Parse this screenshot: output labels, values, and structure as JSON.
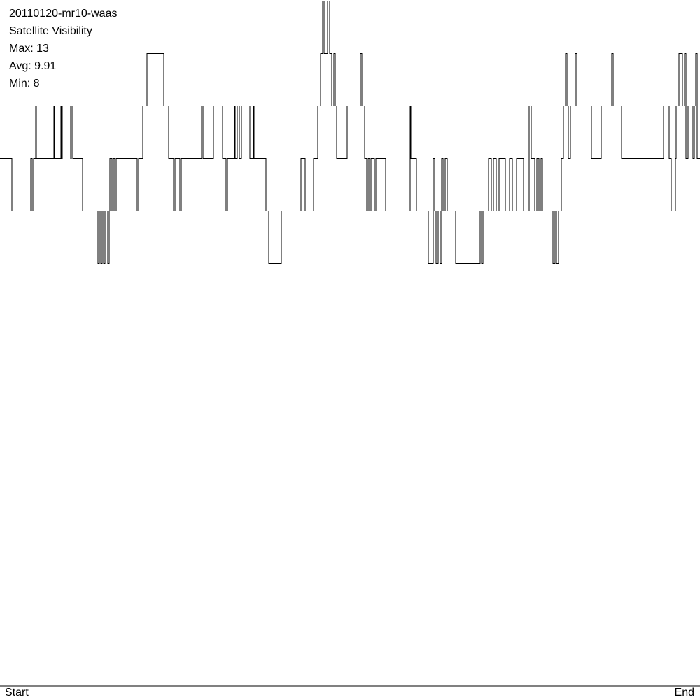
{
  "chart_data": {
    "type": "line",
    "title": "20110120-mr10-waas",
    "subtitle": "Satellite Visibility",
    "stats": [
      {
        "label": "Max",
        "value": 13
      },
      {
        "label": "Avg",
        "value": 9.91
      },
      {
        "label": "Min",
        "value": 8
      }
    ],
    "x_tick_labels": [
      "Start",
      "End"
    ],
    "x_range": [
      0,
      1000
    ],
    "ylim": [
      0,
      13
    ],
    "line_color": "#000000",
    "series": [
      {
        "values": [
          [
            0,
            10
          ],
          [
            17,
            10
          ],
          [
            17,
            9
          ],
          [
            44,
            9
          ],
          [
            44,
            10
          ],
          [
            46,
            10
          ],
          [
            46,
            9
          ],
          [
            48,
            9
          ],
          [
            48,
            10
          ],
          [
            51,
            10
          ],
          [
            51,
            11
          ],
          [
            52,
            11
          ],
          [
            52,
            10
          ],
          [
            77,
            10
          ],
          [
            77,
            11
          ],
          [
            78,
            11
          ],
          [
            78,
            10
          ],
          [
            87,
            10
          ],
          [
            87,
            11
          ],
          [
            88,
            11
          ],
          [
            88,
            10
          ],
          [
            89,
            10
          ],
          [
            89,
            11
          ],
          [
            101,
            11
          ],
          [
            101,
            10
          ],
          [
            102,
            10
          ],
          [
            102,
            11
          ],
          [
            104,
            11
          ],
          [
            104,
            10
          ],
          [
            118,
            10
          ],
          [
            118,
            9
          ],
          [
            140,
            9
          ],
          [
            140,
            8
          ],
          [
            142,
            8
          ],
          [
            142,
            9
          ],
          [
            144,
            9
          ],
          [
            144,
            8
          ],
          [
            146,
            8
          ],
          [
            146,
            9
          ],
          [
            148,
            9
          ],
          [
            148,
            8
          ],
          [
            150,
            8
          ],
          [
            150,
            9
          ],
          [
            154,
            9
          ],
          [
            154,
            8
          ],
          [
            156,
            8
          ],
          [
            156,
            9
          ],
          [
            157,
            9
          ],
          [
            157,
            10
          ],
          [
            160,
            10
          ],
          [
            160,
            9
          ],
          [
            162,
            9
          ],
          [
            162,
            10
          ],
          [
            164,
            10
          ],
          [
            164,
            9
          ],
          [
            166,
            9
          ],
          [
            166,
            10
          ],
          [
            196,
            10
          ],
          [
            196,
            9
          ],
          [
            198,
            9
          ],
          [
            198,
            10
          ],
          [
            204,
            10
          ],
          [
            204,
            11
          ],
          [
            210,
            11
          ],
          [
            210,
            12
          ],
          [
            234,
            12
          ],
          [
            234,
            11
          ],
          [
            241,
            11
          ],
          [
            241,
            10
          ],
          [
            248,
            10
          ],
          [
            248,
            9
          ],
          [
            250,
            9
          ],
          [
            250,
            10
          ],
          [
            257,
            10
          ],
          [
            257,
            9
          ],
          [
            259,
            9
          ],
          [
            259,
            10
          ],
          [
            288,
            10
          ],
          [
            288,
            11
          ],
          [
            290,
            11
          ],
          [
            290,
            10
          ],
          [
            305,
            10
          ],
          [
            305,
            11
          ],
          [
            318,
            11
          ],
          [
            318,
            10
          ],
          [
            323,
            10
          ],
          [
            323,
            9
          ],
          [
            325,
            9
          ],
          [
            325,
            10
          ],
          [
            335,
            10
          ],
          [
            335,
            11
          ],
          [
            336,
            11
          ],
          [
            336,
            10
          ],
          [
            339,
            10
          ],
          [
            339,
            11
          ],
          [
            342,
            11
          ],
          [
            342,
            10
          ],
          [
            345,
            10
          ],
          [
            345,
            11
          ],
          [
            357,
            11
          ],
          [
            357,
            10
          ],
          [
            362,
            10
          ],
          [
            362,
            11
          ],
          [
            363,
            11
          ],
          [
            363,
            10
          ],
          [
            380,
            10
          ],
          [
            380,
            9
          ],
          [
            384,
            9
          ],
          [
            384,
            8
          ],
          [
            402,
            8
          ],
          [
            402,
            9
          ],
          [
            430,
            9
          ],
          [
            430,
            10
          ],
          [
            436,
            10
          ],
          [
            436,
            9
          ],
          [
            448,
            9
          ],
          [
            448,
            10
          ],
          [
            454,
            10
          ],
          [
            454,
            11
          ],
          [
            458,
            11
          ],
          [
            458,
            12
          ],
          [
            461,
            12
          ],
          [
            461,
            13
          ],
          [
            463,
            13
          ],
          [
            463,
            12
          ],
          [
            468,
            12
          ],
          [
            468,
            13
          ],
          [
            471,
            13
          ],
          [
            471,
            12
          ],
          [
            474,
            12
          ],
          [
            474,
            11
          ],
          [
            477,
            11
          ],
          [
            477,
            12
          ],
          [
            479,
            12
          ],
          [
            479,
            11
          ],
          [
            481,
            11
          ],
          [
            481,
            10
          ],
          [
            496,
            10
          ],
          [
            496,
            11
          ],
          [
            515,
            11
          ],
          [
            515,
            12
          ],
          [
            517,
            12
          ],
          [
            517,
            11
          ],
          [
            521,
            11
          ],
          [
            521,
            10
          ],
          [
            524,
            10
          ],
          [
            524,
            9
          ],
          [
            526,
            9
          ],
          [
            526,
            10
          ],
          [
            528,
            10
          ],
          [
            528,
            9
          ],
          [
            530,
            9
          ],
          [
            530,
            10
          ],
          [
            535,
            10
          ],
          [
            535,
            9
          ],
          [
            537,
            9
          ],
          [
            537,
            10
          ],
          [
            551,
            10
          ],
          [
            551,
            9
          ],
          [
            586,
            9
          ],
          [
            586,
            11
          ],
          [
            587,
            11
          ],
          [
            587,
            10
          ],
          [
            595,
            10
          ],
          [
            595,
            9
          ],
          [
            612,
            9
          ],
          [
            612,
            8
          ],
          [
            619,
            8
          ],
          [
            619,
            10
          ],
          [
            621,
            10
          ],
          [
            621,
            9
          ],
          [
            623,
            9
          ],
          [
            623,
            8
          ],
          [
            626,
            8
          ],
          [
            626,
            9
          ],
          [
            629,
            9
          ],
          [
            629,
            8
          ],
          [
            631,
            8
          ],
          [
            631,
            10
          ],
          [
            633,
            10
          ],
          [
            633,
            9
          ],
          [
            636,
            9
          ],
          [
            636,
            10
          ],
          [
            639,
            10
          ],
          [
            639,
            9
          ],
          [
            651,
            9
          ],
          [
            651,
            8
          ],
          [
            686,
            8
          ],
          [
            686,
            9
          ],
          [
            688,
            9
          ],
          [
            688,
            8
          ],
          [
            690,
            8
          ],
          [
            690,
            9
          ],
          [
            698,
            9
          ],
          [
            698,
            10
          ],
          [
            702,
            10
          ],
          [
            702,
            9
          ],
          [
            705,
            9
          ],
          [
            705,
            10
          ],
          [
            709,
            10
          ],
          [
            709,
            9
          ],
          [
            713,
            9
          ],
          [
            713,
            10
          ],
          [
            722,
            10
          ],
          [
            722,
            9
          ],
          [
            728,
            9
          ],
          [
            728,
            10
          ],
          [
            732,
            10
          ],
          [
            732,
            9
          ],
          [
            738,
            9
          ],
          [
            738,
            10
          ],
          [
            748,
            10
          ],
          [
            748,
            9
          ],
          [
            756,
            9
          ],
          [
            756,
            11
          ],
          [
            759,
            11
          ],
          [
            759,
            10
          ],
          [
            764,
            10
          ],
          [
            764,
            9
          ],
          [
            767,
            9
          ],
          [
            767,
            10
          ],
          [
            770,
            10
          ],
          [
            770,
            9
          ],
          [
            773,
            9
          ],
          [
            773,
            10
          ],
          [
            775,
            10
          ],
          [
            775,
            9
          ],
          [
            790,
            9
          ],
          [
            790,
            8
          ],
          [
            793,
            8
          ],
          [
            793,
            9
          ],
          [
            795,
            9
          ],
          [
            795,
            8
          ],
          [
            798,
            8
          ],
          [
            798,
            9
          ],
          [
            802,
            9
          ],
          [
            802,
            10
          ],
          [
            805,
            10
          ],
          [
            805,
            11
          ],
          [
            808,
            11
          ],
          [
            808,
            12
          ],
          [
            810,
            12
          ],
          [
            810,
            11
          ],
          [
            812,
            11
          ],
          [
            812,
            10
          ],
          [
            815,
            10
          ],
          [
            815,
            11
          ],
          [
            822,
            11
          ],
          [
            822,
            12
          ],
          [
            824,
            12
          ],
          [
            824,
            11
          ],
          [
            845,
            11
          ],
          [
            845,
            10
          ],
          [
            859,
            10
          ],
          [
            859,
            11
          ],
          [
            874,
            11
          ],
          [
            874,
            12
          ],
          [
            876,
            12
          ],
          [
            876,
            11
          ],
          [
            888,
            11
          ],
          [
            888,
            10
          ],
          [
            948,
            10
          ],
          [
            948,
            11
          ],
          [
            956,
            11
          ],
          [
            956,
            10
          ],
          [
            959,
            10
          ],
          [
            959,
            9
          ],
          [
            965,
            9
          ],
          [
            965,
            10
          ],
          [
            966,
            10
          ],
          [
            966,
            11
          ],
          [
            970,
            11
          ],
          [
            970,
            12
          ],
          [
            975,
            12
          ],
          [
            975,
            11
          ],
          [
            978,
            11
          ],
          [
            978,
            12
          ],
          [
            980,
            12
          ],
          [
            980,
            10
          ],
          [
            983,
            10
          ],
          [
            983,
            11
          ],
          [
            990,
            11
          ],
          [
            990,
            10
          ],
          [
            992,
            10
          ],
          [
            992,
            11
          ],
          [
            994,
            11
          ],
          [
            994,
            12
          ],
          [
            996,
            12
          ],
          [
            996,
            10
          ],
          [
            1000,
            10
          ]
        ]
      }
    ]
  }
}
